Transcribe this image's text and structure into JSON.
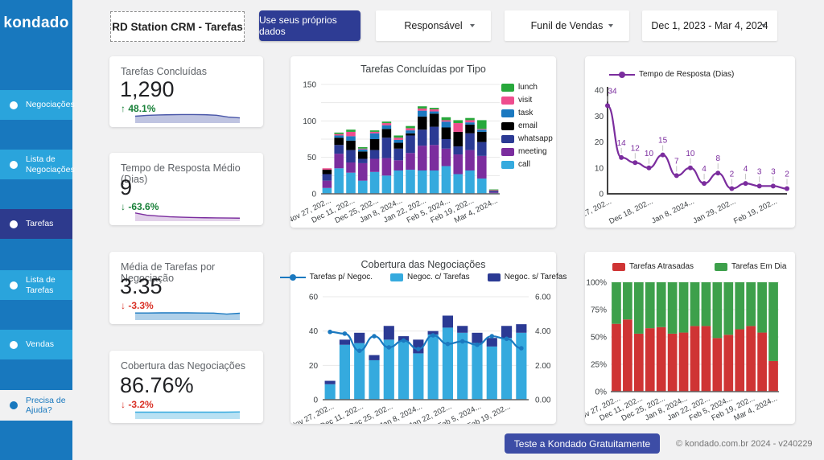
{
  "brand": {
    "logo": "kondado"
  },
  "colors": {
    "sidebar": "#1878be",
    "sidebar_item": "#2aa4dc",
    "sidebar_selected": "#2d3a8d",
    "header_cta_bg": "#2e3c94",
    "footer_cta_bg": "#3d4da6",
    "positive": "#188038",
    "negative": "#d93025",
    "page_bg": "#f1f1f2"
  },
  "header": {
    "title": "RD Station CRM - Tarefas",
    "cta": "Use seus próprios dados",
    "filters": [
      {
        "label": "Responsável"
      },
      {
        "label": "Funil de Vendas"
      },
      {
        "label": "Dec 1, 2023 - Mar 4, 2024"
      }
    ]
  },
  "sidebar": {
    "items": [
      {
        "label": "Negociações"
      },
      {
        "label": "Lista de Negociações"
      },
      {
        "label": "Tarefas"
      },
      {
        "label": "Lista de Tarefas"
      },
      {
        "label": "Vendas"
      },
      {
        "label": "Precisa de Ajuda?"
      }
    ]
  },
  "kpis": [
    {
      "title": "Tarefas Concluídas",
      "value": "1,290",
      "arrow": "↑",
      "delta": "48.1%",
      "trend": "green",
      "spark": {
        "line": "#4956a8",
        "fill": "rgba(73,86,168,0.35)",
        "values": [
          0.5,
          0.56,
          0.59,
          0.61,
          0.62,
          0.62,
          0.61,
          0.57,
          0.44,
          0.38
        ]
      }
    },
    {
      "title": "Tempo de Resposta Médio (Dias)",
      "value": "9",
      "arrow": "↓",
      "delta": "-63.6%",
      "trend": "green",
      "spark": {
        "line": "#7b2d9e",
        "fill": "rgba(123,45,158,0.22)",
        "values": [
          0.6,
          0.44,
          0.37,
          0.32,
          0.29,
          0.27,
          0.25,
          0.24,
          0.23,
          0.22
        ]
      }
    },
    {
      "title": "Média de Tarefas por Negociação",
      "value": "3.35",
      "arrow": "↓",
      "delta": "-3.3%",
      "trend": "red",
      "spark": {
        "line": "#1b79c0",
        "fill": "rgba(27,121,192,0.35)",
        "values": [
          0.52,
          0.52,
          0.53,
          0.53,
          0.53,
          0.52,
          0.51,
          0.44,
          0.5
        ]
      }
    },
    {
      "title": "Cobertura das Negociações",
      "value": "86.76%",
      "arrow": "↓",
      "delta": "-3.2%",
      "trend": "red",
      "spark": {
        "line": "#35aade",
        "fill": "rgba(53,170,222,0.35)",
        "values": [
          0.5,
          0.5,
          0.5,
          0.5,
          0.5,
          0.5,
          0.5,
          0.52
        ]
      }
    }
  ],
  "footer": {
    "cta": "Teste a Kondado Gratuitamente",
    "copyright": "© kondado.com.br 2024 - v240229"
  },
  "chart_data": [
    {
      "id": "tarefas_por_tipo",
      "type": "bar",
      "stacked": true,
      "title": "Tarefas Concluídas por Tipo",
      "categories": [
        "Nov 27, 2023",
        "Dec 4, 2023",
        "Dec 11, 2023",
        "Dec 18, 2023",
        "Dec 25, 2023",
        "Jan 1, 2024",
        "Jan 8, 2024",
        "Jan 15, 2024",
        "Jan 22, 2024",
        "Jan 29, 2024",
        "Feb 5, 2024",
        "Feb 12, 2024",
        "Feb 19, 2024",
        "Feb 26, 2024",
        "Mar 4, 2024"
      ],
      "x_tick_labels": [
        "Nov 27, 202...",
        "Dec 11, 202...",
        "Dec 25, 202...",
        "Jan 8, 2024...",
        "Jan 22, 202...",
        "Feb 5, 2024...",
        "Feb 19, 202...",
        "Mar 4, 2024..."
      ],
      "tick_every": 2,
      "ylim": [
        0,
        150
      ],
      "yticks": [
        0,
        50,
        100,
        150
      ],
      "grid_step": 25,
      "legend_position": "right",
      "legend_order": [
        "lunch",
        "visit",
        "task",
        "email",
        "whatsapp",
        "meeting",
        "call"
      ],
      "series": [
        {
          "name": "call",
          "color": "#35aade",
          "values": [
            8,
            35,
            29,
            18,
            30,
            25,
            32,
            33,
            32,
            32,
            38,
            27,
            32,
            21,
            1
          ]
        },
        {
          "name": "meeting",
          "color": "#7b2d9e",
          "values": [
            10,
            20,
            14,
            24,
            18,
            24,
            14,
            23,
            34,
            35,
            24,
            27,
            28,
            31,
            1
          ]
        },
        {
          "name": "whatsapp",
          "color": "#2b3a94",
          "values": [
            9,
            12,
            17,
            6,
            12,
            28,
            16,
            24,
            22,
            25,
            13,
            11,
            23,
            19,
            2
          ]
        },
        {
          "name": "email",
          "color": "#000000",
          "values": [
            6,
            10,
            13,
            10,
            15,
            12,
            8,
            3,
            18,
            18,
            16,
            20,
            12,
            14,
            0
          ]
        },
        {
          "name": "task",
          "color": "#1b79c0",
          "values": [
            0,
            3,
            6,
            3,
            8,
            5,
            4,
            4,
            8,
            3,
            8,
            0,
            3,
            3,
            0
          ]
        },
        {
          "name": "visit",
          "color": "#ee4d8e",
          "values": [
            2,
            2,
            6,
            1,
            2,
            3,
            3,
            3,
            3,
            3,
            2,
            12,
            3,
            1,
            1
          ]
        },
        {
          "name": "lunch",
          "color": "#27a83b",
          "values": [
            0,
            2,
            3,
            2,
            2,
            2,
            3,
            3,
            3,
            2,
            4,
            4,
            3,
            12,
            1
          ]
        }
      ]
    },
    {
      "id": "tempo_resposta",
      "type": "line",
      "legend": "Tempo de Resposta (Dias)",
      "color": "#7b2d9e",
      "x_tick_labels": [
        "Nov 27, 202...",
        "Dec 18, 202...",
        "Jan 8, 2024...",
        "Jan 29, 202...",
        "Feb 19, 202..."
      ],
      "tick_every": 3,
      "ylim": [
        0,
        40
      ],
      "yticks": [
        0,
        10,
        20,
        30,
        40
      ],
      "values": [
        34,
        14,
        12,
        10,
        15,
        7,
        10,
        4,
        8,
        2,
        4,
        3,
        3,
        2
      ]
    },
    {
      "id": "cobertura_negociacoes",
      "type": "combo",
      "title": "Cobertura das Negociações",
      "x_tick_labels": [
        "Nov 27, 202...",
        "Dec 11, 202...",
        "Dec 25, 202...",
        "Jan 8, 2024...",
        "Jan 22, 202...",
        "Feb 5, 2024...",
        "Feb 19, 202..."
      ],
      "tick_every": 2,
      "left_ylim": [
        0,
        60
      ],
      "left_yticks": [
        0,
        20,
        40,
        60
      ],
      "right_ylim": [
        0,
        6
      ],
      "right_yticks": [
        "0.00",
        "2.00",
        "4.00",
        "6.00"
      ],
      "bars": [
        {
          "name": "Negoc. c/ Tarefas",
          "color": "#35aade",
          "values": [
            9,
            32,
            33,
            23,
            35,
            34,
            27,
            38,
            42,
            39,
            33,
            31,
            36,
            39
          ]
        },
        {
          "name": "Negoc. s/ Tarefas",
          "color": "#2b3a94",
          "values": [
            2,
            3,
            6,
            3,
            8,
            3,
            8,
            2,
            7,
            4,
            6,
            5,
            7,
            5
          ]
        }
      ],
      "line": {
        "name": "Tarefas p/ Negoc.",
        "color": "#1b79c0",
        "values": [
          3.95,
          3.85,
          2.85,
          3.7,
          3.05,
          3.45,
          2.95,
          3.75,
          3.25,
          3.4,
          3.2,
          3.7,
          3.55,
          3.0
        ]
      }
    },
    {
      "id": "tarefas_atrasadas",
      "type": "bar",
      "stacked": true,
      "percent": true,
      "x_tick_labels": [
        "Nov 27, 202...",
        "Dec 11, 202...",
        "Dec 25, 202...",
        "Jan 8, 2024...",
        "Jan 22, 202...",
        "Feb 5, 2024...",
        "Feb 19, 202...",
        "Mar 4, 2024..."
      ],
      "tick_every": 2,
      "yticks_labels": [
        "0%",
        "25%",
        "50%",
        "75%",
        "100%"
      ],
      "series": [
        {
          "name": "Tarefas Atrasadas",
          "color": "#cf3434",
          "values": [
            62,
            66,
            53,
            58,
            59,
            53,
            54,
            60,
            60,
            49,
            52,
            57,
            60,
            54,
            28
          ]
        },
        {
          "name": "Tarefas Em Dia",
          "color": "#3da04b",
          "values": [
            38,
            34,
            47,
            42,
            41,
            47,
            46,
            40,
            40,
            51,
            48,
            43,
            40,
            46,
            72
          ]
        }
      ]
    }
  ]
}
